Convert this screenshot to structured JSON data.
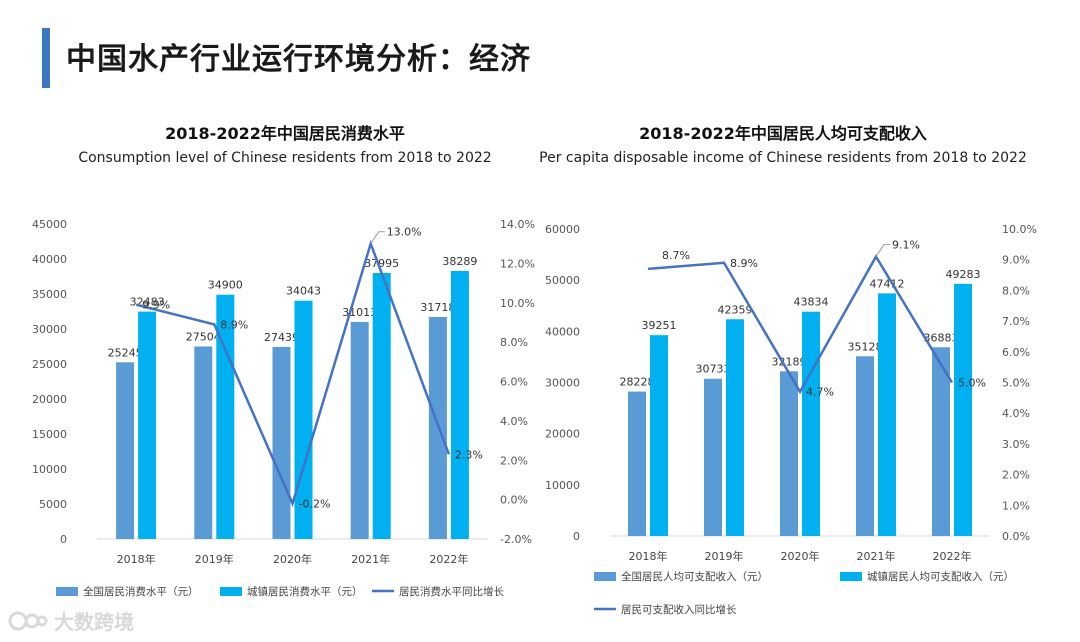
{
  "page": {
    "title": "中国水产行业运行环境分析：经济"
  },
  "watermark": {
    "text": "大数跨境"
  },
  "colors": {
    "accent": "#3a78c2",
    "series_a": "#5b9bd5",
    "series_b": "#00b0f0",
    "line": "#4472c4"
  },
  "chart_data": [
    {
      "type": "bar",
      "title": "2018-2022年中国居民消费水平",
      "subtitle": "Consumption level of Chinese residents from 2018 to 2022",
      "categories": [
        "2018年",
        "2019年",
        "2020年",
        "2021年",
        "2022年"
      ],
      "series": [
        {
          "name": "全国居民消费水平（元）",
          "values": [
            25245,
            27504,
            27439,
            31013,
            31718
          ],
          "labels": [
            "25245",
            "27504",
            "27439",
            "31013",
            "31718"
          ]
        },
        {
          "name": "城镇居民消费水平（元）",
          "values": [
            32483,
            34900,
            34043,
            37995,
            38289
          ],
          "labels": [
            "32483",
            "34900",
            "34043",
            "37995",
            "38289"
          ]
        }
      ],
      "line": {
        "name": "居民消费水平同比增长",
        "values": [
          9.9,
          8.9,
          -0.2,
          13.0,
          2.3
        ],
        "labels": [
          "9.9%",
          "8.9%",
          "-0.2%",
          "13.0%",
          "2.3%"
        ]
      },
      "ylim": [
        0,
        45000
      ],
      "yticks": [
        "0",
        "5000",
        "10000",
        "15000",
        "20000",
        "25000",
        "30000",
        "35000",
        "40000",
        "45000"
      ],
      "y2lim": [
        -2,
        14
      ],
      "y2ticks": [
        "-2.0%",
        "0.0%",
        "2.0%",
        "4.0%",
        "6.0%",
        "8.0%",
        "10.0%",
        "12.0%",
        "14.0%"
      ]
    },
    {
      "type": "bar",
      "title": "2018-2022年中国居民人均可支配收入",
      "subtitle": "Per capita disposable income of Chinese residents from 2018 to 2022",
      "categories": [
        "2018年",
        "2019年",
        "2020年",
        "2021年",
        "2022年"
      ],
      "series": [
        {
          "name": "全国居民人均可支配收入（元）",
          "values": [
            28228,
            30733,
            32189,
            35128,
            36883
          ],
          "labels": [
            "28228",
            "30733",
            "32189",
            "35128",
            "36883"
          ]
        },
        {
          "name": "城镇居民人均可支配收入（元）",
          "values": [
            39251,
            42359,
            43834,
            47412,
            49283
          ],
          "labels": [
            "39251",
            "42359",
            "43834",
            "47412",
            "49283"
          ]
        }
      ],
      "line": {
        "name": "居民可支配收入同比增长",
        "values": [
          8.7,
          8.9,
          4.7,
          9.1,
          5.0
        ],
        "labels": [
          "8.7%",
          "8.9%",
          "4.7%",
          "9.1%",
          "5.0%"
        ]
      },
      "ylim": [
        0,
        60000
      ],
      "yticks": [
        "0",
        "10000",
        "20000",
        "30000",
        "40000",
        "50000",
        "60000"
      ],
      "y2lim": [
        0,
        10
      ],
      "y2ticks": [
        "0.0%",
        "1.0%",
        "2.0%",
        "3.0%",
        "4.0%",
        "5.0%",
        "6.0%",
        "7.0%",
        "8.0%",
        "9.0%",
        "10.0%"
      ]
    }
  ]
}
